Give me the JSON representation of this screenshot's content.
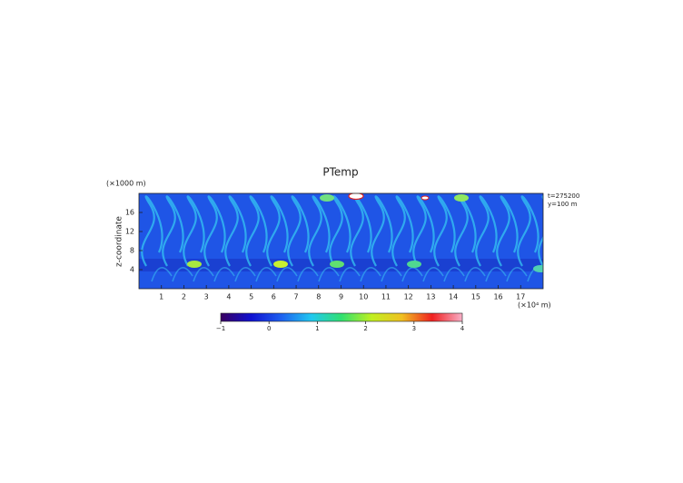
{
  "chart_data": {
    "type": "heatmap",
    "title": "PTemp",
    "y_unit": "(×1000 m)",
    "y_label": "z-coordinate",
    "x_unit": "(×10⁴ m)",
    "annotations": [
      "t=275200",
      "y=100 m"
    ],
    "xlim": [
      0,
      18
    ],
    "xticks": [
      1,
      2,
      3,
      4,
      5,
      6,
      7,
      8,
      9,
      10,
      11,
      12,
      13,
      14,
      15,
      16,
      17
    ],
    "ylim": [
      0,
      20
    ],
    "yticks": [
      4,
      8,
      12,
      16
    ],
    "clim": [
      -1,
      4
    ],
    "cticks": [
      {
        "value": -1,
        "label": "−1"
      },
      0,
      1,
      2,
      3,
      4
    ],
    "colormap": [
      "#3a0060",
      "#1010d0",
      "#1e60f0",
      "#20c8f0",
      "#30e070",
      "#c0f020",
      "#f0c020",
      "#f02020",
      "#f8b0c8"
    ]
  }
}
